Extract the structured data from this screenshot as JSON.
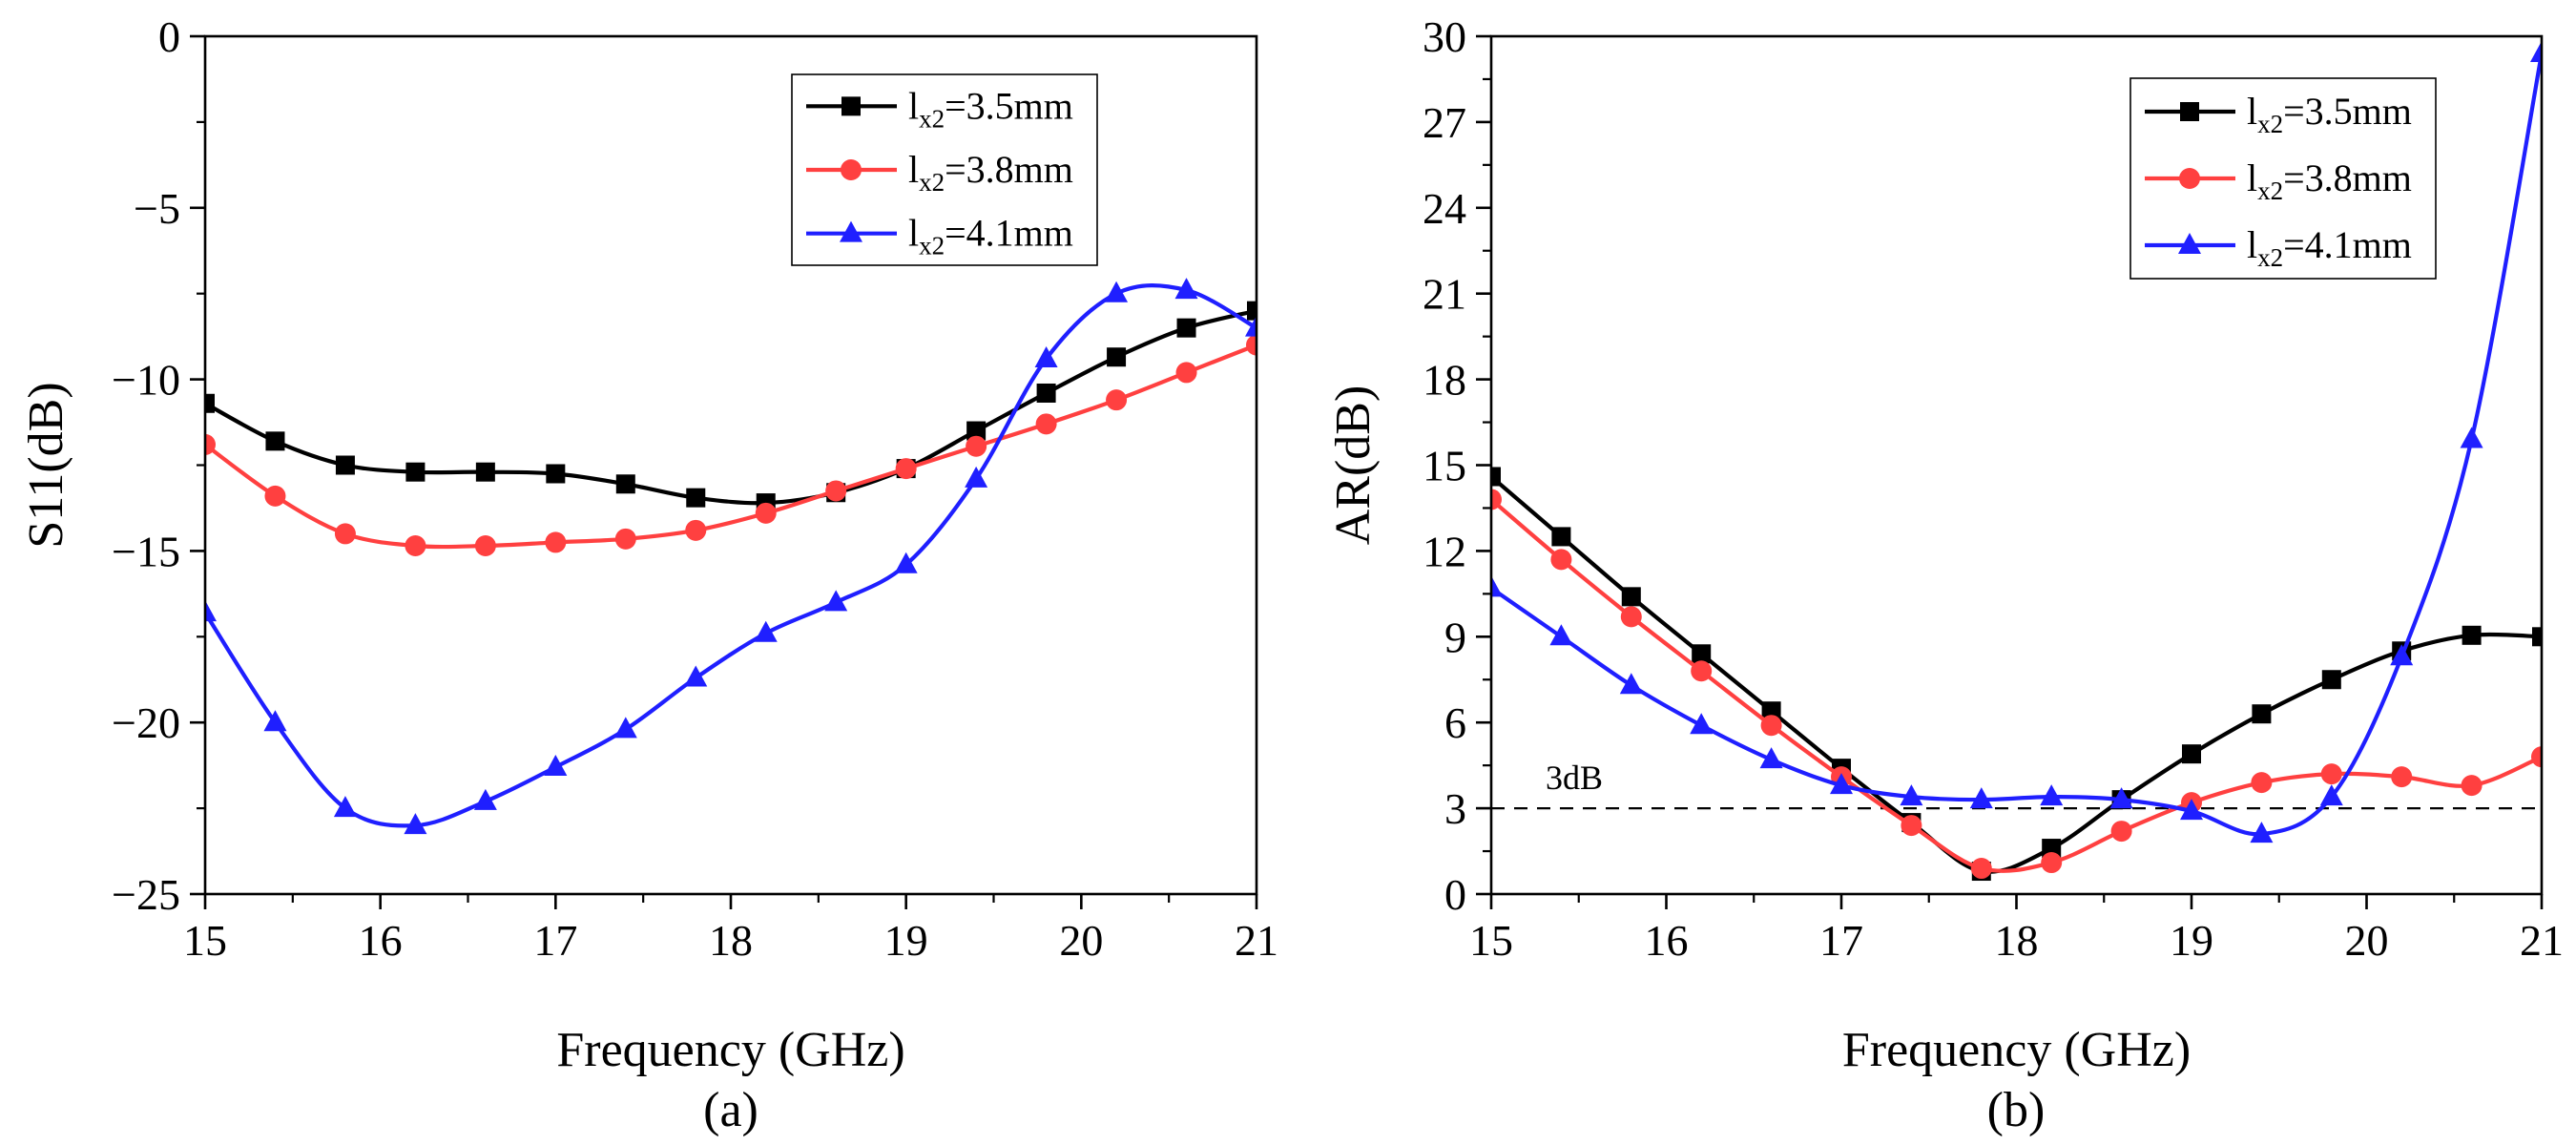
{
  "chart_data": [
    {
      "type": "line",
      "panel_label": "(a)",
      "xlabel": "Frequency (GHz)",
      "ylabel": "S11(dB)",
      "xlim": [
        15,
        21
      ],
      "ylim": [
        -25,
        0
      ],
      "xticks": [
        15,
        16,
        17,
        18,
        19,
        20,
        21
      ],
      "yticks": [
        0,
        -5,
        -10,
        -15,
        -20,
        -25
      ],
      "ytick_labels": [
        "0",
        "−5",
        "−10",
        "−15",
        "−20",
        "−25"
      ],
      "legend_position": "top-right",
      "series": [
        {
          "name": "lx2=3.5mm",
          "label_main": "l",
          "label_sub": "x2",
          "label_rest": "=3.5mm",
          "color": "#000000",
          "marker": "square",
          "x": [
            15.0,
            15.4,
            15.8,
            16.2,
            16.6,
            17.0,
            17.4,
            17.8,
            18.2,
            18.6,
            19.0,
            19.4,
            19.8,
            20.2,
            20.6,
            21.0
          ],
          "values": [
            -10.7,
            -11.8,
            -12.5,
            -12.7,
            -12.7,
            -12.75,
            -13.05,
            -13.45,
            -13.6,
            -13.3,
            -12.6,
            -11.5,
            -10.4,
            -9.35,
            -8.5,
            -8.0
          ]
        },
        {
          "name": "lx2=3.8mm",
          "label_main": "l",
          "label_sub": "x2",
          "label_rest": "=3.8mm",
          "color": "#ff4040",
          "marker": "circle",
          "x": [
            15.0,
            15.4,
            15.8,
            16.2,
            16.6,
            17.0,
            17.4,
            17.8,
            18.2,
            18.6,
            19.0,
            19.4,
            19.8,
            20.2,
            20.6,
            21.0
          ],
          "values": [
            -11.9,
            -13.4,
            -14.5,
            -14.85,
            -14.85,
            -14.75,
            -14.65,
            -14.4,
            -13.9,
            -13.25,
            -12.6,
            -11.95,
            -11.3,
            -10.6,
            -9.8,
            -9.0
          ]
        },
        {
          "name": "lx2=4.1mm",
          "label_main": "l",
          "label_sub": "x2",
          "label_rest": "=4.1mm",
          "color": "#1f1fff",
          "marker": "triangle",
          "x": [
            15.0,
            15.4,
            15.8,
            16.2,
            16.6,
            17.0,
            17.4,
            17.8,
            18.2,
            18.6,
            19.0,
            19.4,
            19.8,
            20.2,
            20.6,
            21.0
          ],
          "values": [
            -16.8,
            -20.0,
            -22.5,
            -23.0,
            -22.3,
            -21.3,
            -20.2,
            -18.7,
            -17.4,
            -16.5,
            -15.4,
            -12.9,
            -9.4,
            -7.5,
            -7.4,
            -8.5
          ]
        }
      ]
    },
    {
      "type": "line",
      "panel_label": "(b)",
      "xlabel": "Frequency (GHz)",
      "ylabel": "AR(dB)",
      "xlim": [
        15,
        21
      ],
      "ylim": [
        0,
        30
      ],
      "xticks": [
        15,
        16,
        17,
        18,
        19,
        20,
        21
      ],
      "yticks": [
        0,
        3,
        6,
        9,
        12,
        15,
        18,
        21,
        24,
        27,
        30
      ],
      "ytick_labels": [
        "0",
        "3",
        "6",
        "9",
        "12",
        "15",
        "18",
        "21",
        "24",
        "27",
        "30"
      ],
      "legend_position": "top-right",
      "reference_line": {
        "y": 3,
        "label": "3dB",
        "style": "dashed"
      },
      "series": [
        {
          "name": "lx2=3.5mm",
          "label_main": "l",
          "label_sub": "x2",
          "label_rest": "=3.5mm",
          "color": "#000000",
          "marker": "square",
          "x": [
            15.0,
            15.4,
            15.8,
            16.2,
            16.6,
            17.0,
            17.4,
            17.8,
            18.2,
            18.6,
            19.0,
            19.4,
            19.8,
            20.2,
            20.6,
            21.0
          ],
          "values": [
            14.6,
            12.5,
            10.4,
            8.4,
            6.4,
            4.4,
            2.5,
            0.8,
            1.6,
            3.3,
            4.9,
            6.3,
            7.5,
            8.5,
            9.05,
            9.0
          ]
        },
        {
          "name": "lx2=3.8mm",
          "label_main": "l",
          "label_sub": "x2",
          "label_rest": "=3.8mm",
          "color": "#ff4040",
          "marker": "circle",
          "x": [
            15.0,
            15.4,
            15.8,
            16.2,
            16.6,
            17.0,
            17.4,
            17.8,
            18.2,
            18.6,
            19.0,
            19.4,
            19.8,
            20.2,
            20.6,
            21.0
          ],
          "values": [
            13.8,
            11.7,
            9.7,
            7.8,
            5.9,
            4.1,
            2.4,
            0.9,
            1.1,
            2.2,
            3.2,
            3.9,
            4.2,
            4.1,
            3.8,
            4.8
          ]
        },
        {
          "name": "lx2=4.1mm",
          "label_main": "l",
          "label_sub": "x2",
          "label_rest": "=4.1mm",
          "color": "#1f1fff",
          "marker": "triangle",
          "x": [
            15.0,
            15.4,
            15.8,
            16.2,
            16.6,
            17.0,
            17.4,
            17.8,
            18.2,
            18.6,
            19.0,
            19.4,
            19.8,
            20.2,
            20.6,
            21.0
          ],
          "values": [
            10.7,
            9.0,
            7.3,
            5.9,
            4.7,
            3.8,
            3.4,
            3.3,
            3.4,
            3.3,
            2.9,
            2.1,
            3.4,
            8.3,
            15.9,
            29.4
          ]
        }
      ]
    }
  ]
}
